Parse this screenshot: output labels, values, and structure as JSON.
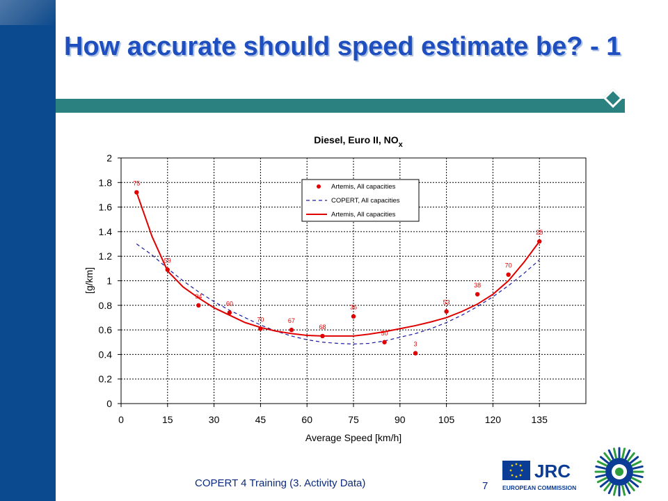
{
  "slide": {
    "title": "How accurate should speed estimate be? - 1",
    "footer": "COPERT 4 Training (3. Activity Data)",
    "page_number": "7",
    "logo_text": "JRC",
    "logo_subtext": "EUROPEAN COMMISSION"
  },
  "colors": {
    "sidebar": "#0b4a8e",
    "title": "#1f4fbf",
    "rule": "#2b8080",
    "artemis": "#e00000",
    "copert": "#1a1aa0"
  },
  "chart_data": {
    "type": "line",
    "title": "Diesel, Euro II, NO",
    "title_subscript": "x",
    "xlabel": "Average Speed [km/h]",
    "ylabel": "[g/km]",
    "xlim": [
      0,
      150
    ],
    "ylim": [
      0,
      2
    ],
    "x_ticks": [
      0,
      15,
      30,
      45,
      60,
      75,
      90,
      105,
      120,
      135
    ],
    "y_ticks": [
      "0",
      "0.2",
      "0.4",
      "0.6",
      "0.8",
      "1",
      "1.2",
      "1.4",
      "1.6",
      "1.8",
      "2"
    ],
    "grid": true,
    "legend_position": "top-right",
    "series": [
      {
        "name": "Artemis, All capacities",
        "style": "markers",
        "points": [
          {
            "x": 5,
            "y": 1.72,
            "label": "75"
          },
          {
            "x": 15,
            "y": 1.09,
            "label": "59"
          },
          {
            "x": 25,
            "y": 0.8,
            "label": "94"
          },
          {
            "x": 35,
            "y": 0.74,
            "label": "60"
          },
          {
            "x": 45,
            "y": 0.61,
            "label": "70"
          },
          {
            "x": 55,
            "y": 0.6,
            "label": "67"
          },
          {
            "x": 65,
            "y": 0.55,
            "label": "68"
          },
          {
            "x": 75,
            "y": 0.71,
            "label": "36"
          },
          {
            "x": 85,
            "y": 0.5,
            "label": "50"
          },
          {
            "x": 95,
            "y": 0.41,
            "label": "3"
          },
          {
            "x": 105,
            "y": 0.75,
            "label": "53"
          },
          {
            "x": 115,
            "y": 0.89,
            "label": "38"
          },
          {
            "x": 125,
            "y": 1.05,
            "label": "70"
          },
          {
            "x": 135,
            "y": 1.32,
            "label": "25"
          }
        ]
      },
      {
        "name": "COPERT, All capacities",
        "style": "dashed",
        "x": [
          5,
          10,
          15,
          20,
          25,
          30,
          35,
          40,
          45,
          50,
          55,
          60,
          65,
          70,
          75,
          80,
          85,
          90,
          95,
          100,
          105,
          110,
          115,
          120,
          125,
          130,
          135
        ],
        "y": [
          1.3,
          1.21,
          1.1,
          1.0,
          0.91,
          0.83,
          0.76,
          0.7,
          0.64,
          0.59,
          0.55,
          0.52,
          0.5,
          0.49,
          0.485,
          0.49,
          0.51,
          0.54,
          0.57,
          0.61,
          0.66,
          0.72,
          0.79,
          0.87,
          0.96,
          1.06,
          1.17
        ]
      },
      {
        "name": "Artemis, All capacities",
        "style": "solid",
        "x": [
          5,
          10,
          15,
          20,
          25,
          30,
          35,
          40,
          45,
          50,
          55,
          60,
          65,
          70,
          75,
          80,
          85,
          90,
          95,
          100,
          105,
          110,
          115,
          120,
          125,
          130,
          135
        ],
        "y": [
          1.72,
          1.36,
          1.08,
          0.95,
          0.86,
          0.78,
          0.72,
          0.66,
          0.62,
          0.59,
          0.57,
          0.555,
          0.55,
          0.55,
          0.55,
          0.565,
          0.585,
          0.61,
          0.635,
          0.665,
          0.7,
          0.75,
          0.81,
          0.89,
          1.0,
          1.15,
          1.32
        ]
      }
    ]
  }
}
